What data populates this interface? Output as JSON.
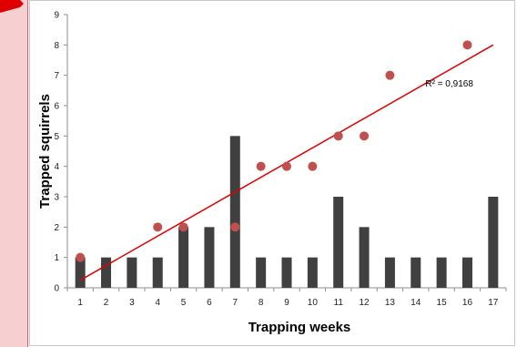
{
  "chart_data": {
    "type": "bar",
    "categories": [
      "1",
      "2",
      "3",
      "4",
      "5",
      "6",
      "7",
      "8",
      "9",
      "10",
      "11",
      "12",
      "13",
      "14",
      "15",
      "16",
      "17"
    ],
    "series": [
      {
        "type": "bar",
        "values": [
          1,
          1,
          1,
          1,
          2,
          2,
          5,
          1,
          1,
          1,
          3,
          2,
          1,
          1,
          1,
          1,
          3
        ],
        "color": "#404040"
      },
      {
        "type": "scatter",
        "points": [
          {
            "x": 1,
            "y": 1
          },
          {
            "x": 4,
            "y": 2
          },
          {
            "x": 5,
            "y": 2
          },
          {
            "x": 7,
            "y": 2
          },
          {
            "x": 8,
            "y": 4
          },
          {
            "x": 9,
            "y": 4
          },
          {
            "x": 10,
            "y": 4
          },
          {
            "x": 11,
            "y": 5
          },
          {
            "x": 12,
            "y": 5
          },
          {
            "x": 13,
            "y": 7
          },
          {
            "x": 16,
            "y": 8
          }
        ],
        "color": "#c0504d"
      }
    ],
    "trendline": {
      "type": "linear",
      "start": {
        "x": 1,
        "y": 0.25
      },
      "end": {
        "x": 17,
        "y": 8
      },
      "color": "#e00000",
      "r2_label": "R² = 0,9168"
    },
    "title": "",
    "xlabel": "Trapping weeks",
    "ylabel": "Trapped squirrels",
    "yticks": [
      "0",
      "1",
      "2",
      "3",
      "4",
      "5",
      "6",
      "7",
      "8",
      "9"
    ],
    "ylim": [
      0,
      9
    ],
    "grid": false,
    "legend": "none"
  }
}
